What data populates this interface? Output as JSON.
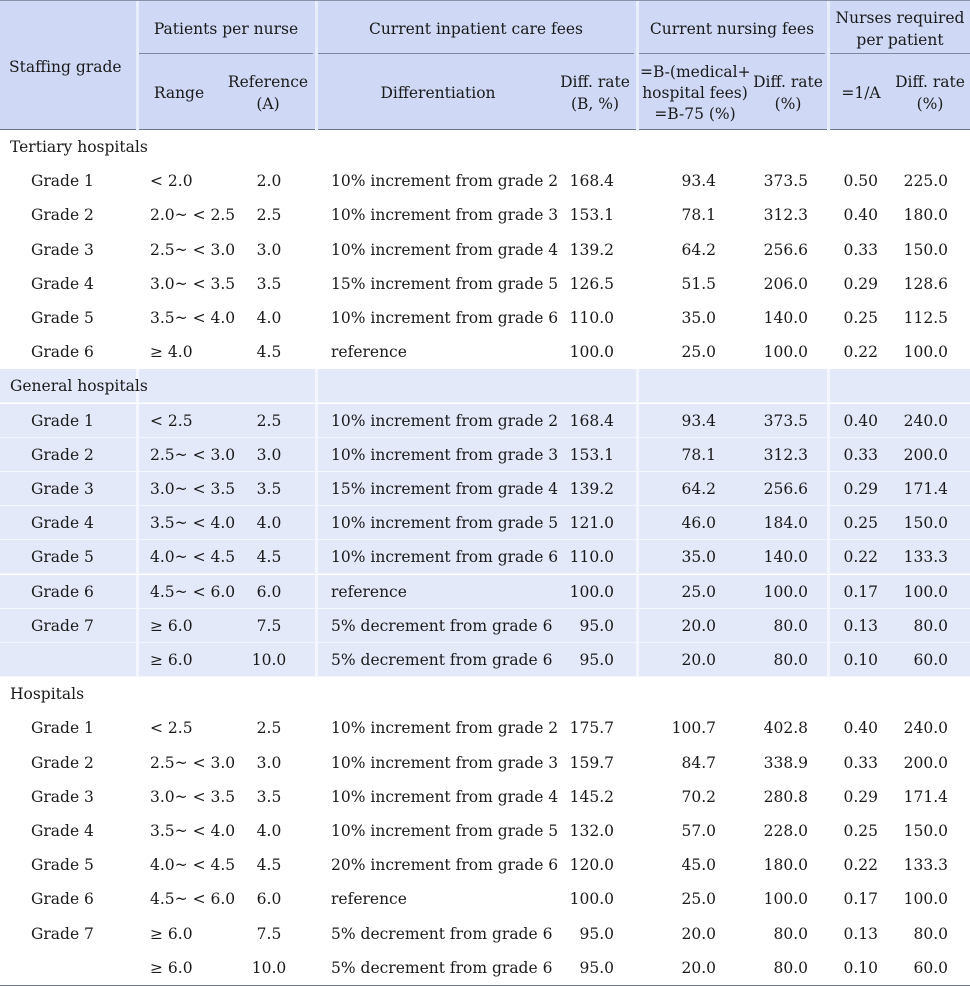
{
  "header": {
    "staffing_grade": "Staffing grade",
    "patients_per_nurse": "Patients per nurse",
    "range": "Range",
    "reference_l1": "Reference",
    "reference_l2": "(A)",
    "inpatient_fees": "Current inpatient care fees",
    "differentiation": "Differentiation",
    "diff_rate_b_l1": "Diff. rate",
    "diff_rate_b_l2": "(B, %)",
    "nursing_fees": "Current nursing fees",
    "formula_l1": "=B-(medical+",
    "formula_l2": "hospital fees)",
    "formula_l3": "=B-75 (%)",
    "diff_rate_l1": "Diff. rate",
    "diff_rate_l2": "(%)",
    "nurses_required_l1": "Nurses required",
    "nurses_required_l2": "per patient",
    "inverse": "=1/A",
    "diff_rate2_l1": "Diff. rate",
    "diff_rate2_l2": "(%)"
  },
  "sections": [
    {
      "title": "Tertiary hospitals",
      "shaded": false,
      "rows": [
        {
          "grade": "Grade 1",
          "range": "< 2.0",
          "ref": "2.0",
          "diff": "10% increment from grade 2",
          "rate": "168.4",
          "b75": "93.4",
          "nrate": "373.5",
          "inv": "0.50",
          "nurse": "225.0"
        },
        {
          "grade": "Grade 2",
          "range": "2.0~ < 2.5",
          "ref": "2.5",
          "diff": "10% increment from grade 3",
          "rate": "153.1",
          "b75": "78.1",
          "nrate": "312.3",
          "inv": "0.40",
          "nurse": "180.0"
        },
        {
          "grade": "Grade 3",
          "range": "2.5~ < 3.0",
          "ref": "3.0",
          "diff": "10% increment from grade 4",
          "rate": "139.2",
          "b75": "64.2",
          "nrate": "256.6",
          "inv": "0.33",
          "nurse": "150.0"
        },
        {
          "grade": "Grade 4",
          "range": "3.0~ < 3.5",
          "ref": "3.5",
          "diff": "15% increment from grade 5",
          "rate": "126.5",
          "b75": "51.5",
          "nrate": "206.0",
          "inv": "0.29",
          "nurse": "128.6"
        },
        {
          "grade": "Grade 5",
          "range": "3.5~ < 4.0",
          "ref": "4.0",
          "diff": "10% increment from grade 6",
          "rate": "110.0",
          "b75": "35.0",
          "nrate": "140.0",
          "inv": "0.25",
          "nurse": "112.5"
        },
        {
          "grade": "Grade 6",
          "range": "≥ 4.0",
          "ref": "4.5",
          "diff": "reference",
          "rate": "100.0",
          "b75": "25.0",
          "nrate": "100.0",
          "inv": "0.22",
          "nurse": "100.0"
        }
      ]
    },
    {
      "title": "General hospitals",
      "shaded": true,
      "rows": [
        {
          "grade": "Grade 1",
          "range": "< 2.5",
          "ref": "2.5",
          "diff": "10% increment from grade 2",
          "rate": "168.4",
          "b75": "93.4",
          "nrate": "373.5",
          "inv": "0.40",
          "nurse": "240.0"
        },
        {
          "grade": "Grade 2",
          "range": "2.5~ < 3.0",
          "ref": "3.0",
          "diff": "10% increment from grade 3",
          "rate": "153.1",
          "b75": "78.1",
          "nrate": "312.3",
          "inv": "0.33",
          "nurse": "200.0"
        },
        {
          "grade": "Grade 3",
          "range": "3.0~ < 3.5",
          "ref": "3.5",
          "diff": "15% increment from grade 4",
          "rate": "139.2",
          "b75": "64.2",
          "nrate": "256.6",
          "inv": "0.29",
          "nurse": "171.4"
        },
        {
          "grade": "Grade 4",
          "range": "3.5~ < 4.0",
          "ref": "4.0",
          "diff": "10% increment from grade 5",
          "rate": "121.0",
          "b75": "46.0",
          "nrate": "184.0",
          "inv": "0.25",
          "nurse": "150.0"
        },
        {
          "grade": "Grade 5",
          "range": "4.0~ < 4.5",
          "ref": "4.5",
          "diff": "10% increment from grade 6",
          "rate": "110.0",
          "b75": "35.0",
          "nrate": "140.0",
          "inv": "0.22",
          "nurse": "133.3"
        },
        {
          "grade": "Grade 6",
          "range": "4.5~ < 6.0",
          "ref": "6.0",
          "diff": "reference",
          "rate": "100.0",
          "b75": "25.0",
          "nrate": "100.0",
          "inv": "0.17",
          "nurse": "100.0"
        },
        {
          "grade": "Grade 7",
          "range": "≥ 6.0",
          "ref": "7.5",
          "diff": "5% decrement from grade 6",
          "rate": "95.0",
          "b75": "20.0",
          "nrate": "80.0",
          "inv": "0.13",
          "nurse": "80.0"
        },
        {
          "grade": "",
          "range": "≥ 6.0",
          "ref": "10.0",
          "diff": "5% decrement from grade 6",
          "rate": "95.0",
          "b75": "20.0",
          "nrate": "80.0",
          "inv": "0.10",
          "nurse": "60.0"
        }
      ]
    },
    {
      "title": "Hospitals",
      "shaded": false,
      "rows": [
        {
          "grade": "Grade 1",
          "range": "< 2.5",
          "ref": "2.5",
          "diff": "10% increment from grade 2",
          "rate": "175.7",
          "b75": "100.7",
          "nrate": "402.8",
          "inv": "0.40",
          "nurse": "240.0"
        },
        {
          "grade": "Grade 2",
          "range": "2.5~ < 3.0",
          "ref": "3.0",
          "diff": "10% increment from grade 3",
          "rate": "159.7",
          "b75": "84.7",
          "nrate": "338.9",
          "inv": "0.33",
          "nurse": "200.0"
        },
        {
          "grade": "Grade 3",
          "range": "3.0~ < 3.5",
          "ref": "3.5",
          "diff": "10% increment from grade 4",
          "rate": "145.2",
          "b75": "70.2",
          "nrate": "280.8",
          "inv": "0.29",
          "nurse": "171.4"
        },
        {
          "grade": "Grade 4",
          "range": "3.5~ < 4.0",
          "ref": "4.0",
          "diff": "10% increment from grade 5",
          "rate": "132.0",
          "b75": "57.0",
          "nrate": "228.0",
          "inv": "0.25",
          "nurse": "150.0"
        },
        {
          "grade": "Grade  5",
          "range": "4.0~ < 4.5",
          "ref": "4.5",
          "diff": "20% increment from grade 6",
          "rate": "120.0",
          "b75": "45.0",
          "nrate": "180.0",
          "inv": "0.22",
          "nurse": "133.3"
        },
        {
          "grade": "Grade  6",
          "range": "4.5~ < 6.0",
          "ref": "6.0",
          "diff": "reference",
          "rate": "100.0",
          "b75": "25.0",
          "nrate": "100.0",
          "inv": "0.17",
          "nurse": "100.0"
        },
        {
          "grade": "Grade  7",
          "range": "≥ 6.0",
          "ref": "7.5",
          "diff": "5% decrement from grade 6",
          "rate": "95.0",
          "b75": "20.0",
          "nrate": "80.0",
          "inv": "0.13",
          "nurse": "80.0"
        },
        {
          "grade": "",
          "range": "≥ 6.0",
          "ref": "10.0",
          "diff": "5% decrement from grade 6",
          "rate": "95.0",
          "b75": "20.0",
          "nrate": "80.0",
          "inv": "0.10",
          "nurse": "60.0"
        }
      ]
    }
  ]
}
